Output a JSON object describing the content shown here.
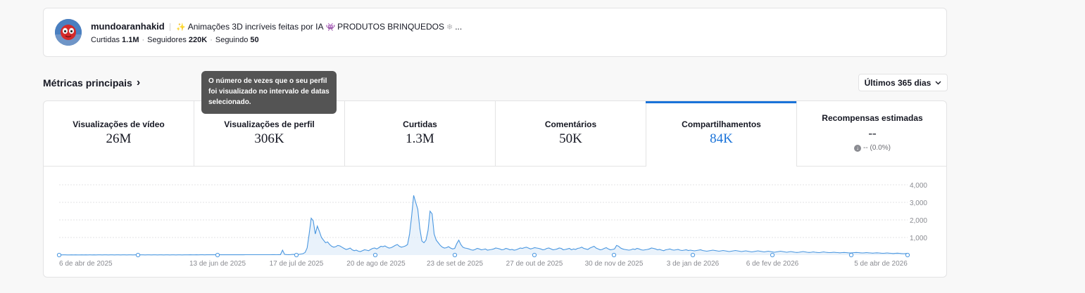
{
  "profile": {
    "username": "mundoaranhakid",
    "bio_prefix_emoji": "✨",
    "bio_text": "Animações 3D incríveis feitas por IA",
    "bio_mid_emoji": "👾",
    "bio_text2": "PRODUTOS BRINQUEDOS",
    "bio_suffix_emoji": "❄",
    "bio_ellipsis": "...",
    "likes_label": "Curtidas",
    "likes_value": "1.1M",
    "followers_label": "Seguidores",
    "followers_value": "220K",
    "following_label": "Seguindo",
    "following_value": "50"
  },
  "section": {
    "title": "Métricas principais",
    "chevron": "›",
    "range_label": "Últimos 365 dias",
    "range_caret": "⌄"
  },
  "tooltip": {
    "text": "O número de vezes que o seu perfil foi visualizado no intervalo de datas selecionado."
  },
  "tabs": [
    {
      "label": "Visualizações de vídeo",
      "value": "26M"
    },
    {
      "label": "Visualizações de perfil",
      "value": "306K"
    },
    {
      "label": "Curtidas",
      "value": "1.3M"
    },
    {
      "label": "Comentários",
      "value": "50K"
    },
    {
      "label": "Compartilhamentos",
      "value": "84K"
    },
    {
      "label": "Recompensas estimadas",
      "value": "--",
      "delta": "-- (0.0%)"
    }
  ],
  "colors": {
    "accent": "#1a73d9",
    "line": "#4a97e0",
    "area": "#dbe9f8"
  },
  "chart_data": {
    "type": "line",
    "x_labels": [
      "6 de abr de 2025",
      "13 de jun de 2025",
      "17 de jul de 2025",
      "20 de ago de 2025",
      "23 de set de 2025",
      "27 de out de 2025",
      "30 de nov de 2025",
      "3 de jan de 2026",
      "6 de fev de 2026",
      "5 de abr de 2026"
    ],
    "y_ticks": [
      "4,000",
      "3,000",
      "2,000",
      "1,000"
    ],
    "ylim": [
      0,
      4000
    ],
    "grid": true,
    "series": [
      {
        "values": [
          10,
          10,
          12,
          11,
          10,
          10,
          12,
          10,
          11,
          10,
          10,
          12,
          10,
          11,
          10,
          12,
          10,
          11,
          10,
          12,
          11,
          10,
          12,
          11,
          10,
          11,
          12,
          10,
          11,
          12,
          10,
          12,
          11,
          10,
          12,
          11,
          10,
          12,
          11,
          10,
          12,
          11,
          10,
          12,
          11,
          10,
          12,
          11,
          10,
          12,
          11,
          10,
          12,
          11,
          10,
          12,
          11,
          10,
          12,
          11,
          10,
          12,
          11,
          12,
          15,
          14,
          13,
          15,
          14,
          16,
          15,
          14,
          16,
          15,
          17,
          16,
          15,
          18,
          17,
          16,
          18,
          17,
          16,
          18,
          17,
          16,
          18,
          17,
          16,
          18,
          17,
          18,
          20,
          19,
          18,
          20,
          19,
          18,
          20,
          19,
          18,
          20,
          22,
          21,
          24,
          23,
          22,
          25,
          24,
          280,
          40,
          30,
          25,
          30,
          40,
          35,
          40,
          40,
          60,
          80,
          150,
          400,
          1200,
          2100,
          1950,
          1200,
          1650,
          1350,
          1000,
          850,
          700,
          750,
          600,
          500,
          450,
          480,
          550,
          520,
          450,
          380,
          320,
          350,
          400,
          300,
          250,
          280,
          220,
          200,
          250,
          300,
          280,
          250,
          320,
          380,
          400,
          350,
          420,
          500,
          480,
          520,
          450,
          400,
          420,
          480,
          550,
          600,
          500,
          450,
          480,
          520,
          600,
          1200,
          2200,
          3400,
          3000,
          2600,
          1500,
          800,
          700,
          850,
          1400,
          2500,
          2350,
          1200,
          850,
          700,
          550,
          450,
          400,
          420,
          480,
          400,
          350,
          380,
          650,
          850,
          600,
          450,
          400,
          380,
          350,
          300,
          280,
          320,
          380,
          350,
          300,
          320,
          350,
          280,
          300,
          320,
          350,
          400,
          380,
          350,
          300,
          320,
          380,
          350,
          300,
          320,
          280,
          300,
          350,
          400,
          380,
          420,
          450,
          400,
          350,
          380,
          420,
          400,
          380,
          350,
          300,
          320,
          380,
          400,
          350,
          300,
          320,
          350,
          400,
          380,
          300,
          320,
          350,
          380,
          300,
          350,
          320,
          380,
          400,
          450,
          380,
          350,
          320,
          400,
          450,
          500,
          400,
          350,
          300,
          320,
          380,
          420,
          350,
          300,
          320,
          350,
          550,
          500,
          400,
          350,
          320,
          300,
          280,
          300,
          350,
          320,
          380,
          350,
          300,
          280,
          300,
          320,
          350,
          400,
          380,
          350,
          300,
          320,
          280,
          250,
          300,
          320,
          350,
          300,
          280,
          300,
          320,
          280,
          260,
          280,
          300,
          260,
          280,
          260,
          240,
          260,
          280,
          300,
          260,
          240,
          220,
          240,
          260,
          280,
          260,
          240,
          220,
          240,
          260,
          240,
          220,
          200,
          220,
          240,
          260,
          240,
          220,
          200,
          220,
          240,
          220,
          200,
          180,
          200,
          220,
          240,
          220,
          200,
          180,
          200,
          220,
          200,
          180,
          160,
          180,
          200,
          220,
          200,
          180,
          160,
          180,
          200,
          180,
          160,
          150,
          160,
          180,
          200,
          180,
          160,
          150,
          160,
          180,
          160,
          150,
          140,
          160,
          180,
          160,
          150,
          140,
          150,
          160,
          150,
          140,
          130,
          140,
          150,
          140,
          130,
          120,
          130,
          140,
          150,
          140,
          130,
          120,
          130,
          140,
          130,
          120,
          110,
          120,
          130,
          120,
          110,
          100,
          110,
          120,
          110,
          100,
          90,
          100,
          110,
          100,
          90,
          80,
          90,
          100
        ]
      }
    ]
  }
}
